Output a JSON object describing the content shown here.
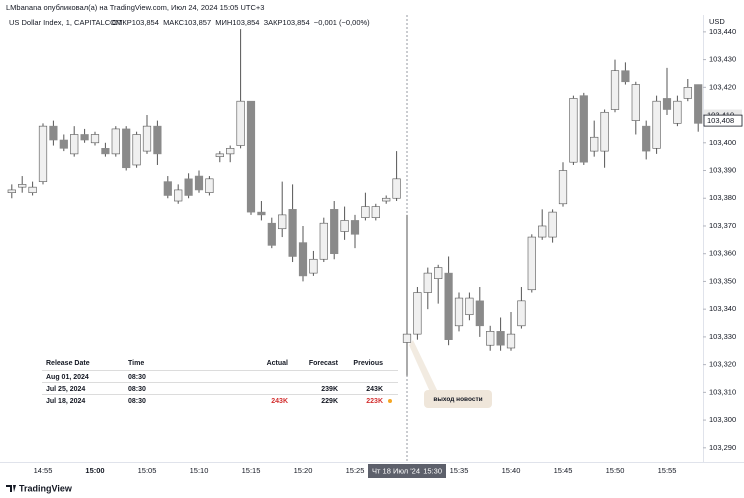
{
  "header": {
    "published": "LMbanana опубликовал(а) на TradingView.com, Июл 24, 2024 15:05 UTC+3",
    "symbol": "US Dollar Index, 1, CAPITALCOM",
    "ohlc": "ОТКР103,854  МАКС103,857  МИН103,854  ЗАКР103,854  −0,001 (−0,00%)",
    "currency": "USD"
  },
  "chart_data": {
    "type": "candlestick",
    "up_color": "#f0f0f0",
    "down_color": "#8a8a8a",
    "outline": "#555555",
    "categories": [
      null,
      null,
      null,
      "14:55",
      null,
      null,
      null,
      null,
      "15:00",
      null,
      null,
      null,
      null,
      "15:05",
      null,
      null,
      null,
      null,
      "15:10",
      null,
      null,
      null,
      null,
      "15:15",
      null,
      null,
      null,
      null,
      "15:20",
      null,
      null,
      null,
      null,
      "15:25",
      null,
      null,
      null,
      null,
      null,
      null,
      null,
      null,
      null,
      "15:35",
      null,
      null,
      null,
      null,
      "15:40",
      null,
      null,
      null,
      null,
      "15:45",
      null,
      null,
      null,
      null,
      "15:50",
      null,
      null,
      null,
      null,
      "15:55",
      null,
      null,
      null
    ],
    "open": [
      103.382,
      103.384,
      103.382,
      103.386,
      103.406,
      103.401,
      103.396,
      103.403,
      103.4,
      103.398,
      103.396,
      103.405,
      103.392,
      103.397,
      103.406,
      103.386,
      103.379,
      103.387,
      103.388,
      103.382,
      103.395,
      103.396,
      103.399,
      103.415,
      103.375,
      103.371,
      103.369,
      103.376,
      103.364,
      103.353,
      103.358,
      103.376,
      103.368,
      103.372,
      103.373,
      103.373,
      103.379,
      103.38,
      103.328,
      103.331,
      103.346,
      103.351,
      103.353,
      103.334,
      103.338,
      103.343,
      103.327,
      103.332,
      103.326,
      103.334,
      103.347,
      103.366,
      103.366,
      103.378,
      103.393,
      103.417,
      103.397,
      103.397,
      103.412,
      103.426,
      103.408,
      103.406,
      103.398,
      103.416,
      103.407,
      103.416,
      103.421
    ],
    "high": [
      103.385,
      103.388,
      103.386,
      103.407,
      103.408,
      103.403,
      103.406,
      103.405,
      103.404,
      103.4,
      103.406,
      103.406,
      103.404,
      103.41,
      103.408,
      103.388,
      103.385,
      103.389,
      103.39,
      103.388,
      103.397,
      103.399,
      103.441,
      103.415,
      103.379,
      103.373,
      103.386,
      103.385,
      103.37,
      103.361,
      103.373,
      103.379,
      103.377,
      103.374,
      103.382,
      103.378,
      103.381,
      103.397,
      103.374,
      103.348,
      103.355,
      103.356,
      103.359,
      103.346,
      103.346,
      103.348,
      103.334,
      103.337,
      103.339,
      103.348,
      103.367,
      103.376,
      103.376,
      103.393,
      103.417,
      103.418,
      103.408,
      103.412,
      103.43,
      103.429,
      103.422,
      103.408,
      103.417,
      103.427,
      103.417,
      103.423,
      103.421
    ],
    "low": [
      103.38,
      103.382,
      103.381,
      103.385,
      103.399,
      103.397,
      103.395,
      103.4,
      103.399,
      103.395,
      103.395,
      103.39,
      103.391,
      103.396,
      103.392,
      103.38,
      103.378,
      103.38,
      103.382,
      103.381,
      103.393,
      103.393,
      103.398,
      103.374,
      103.372,
      103.362,
      103.366,
      103.357,
      103.35,
      103.352,
      103.357,
      103.358,
      103.365,
      103.362,
      103.372,
      103.372,
      103.378,
      103.379,
      103.316,
      103.329,
      103.34,
      103.342,
      103.327,
      103.332,
      103.336,
      103.33,
      103.325,
      103.325,
      103.325,
      103.333,
      103.346,
      103.365,
      103.364,
      103.377,
      103.392,
      103.392,
      103.395,
      103.391,
      103.411,
      103.421,
      103.403,
      103.394,
      103.396,
      103.41,
      103.406,
      103.415,
      103.404
    ],
    "close": [
      103.383,
      103.385,
      103.384,
      103.406,
      103.401,
      103.398,
      103.403,
      103.401,
      103.403,
      103.396,
      103.405,
      103.391,
      103.403,
      103.406,
      103.396,
      103.381,
      103.383,
      103.381,
      103.383,
      103.387,
      103.396,
      103.398,
      103.415,
      103.375,
      103.374,
      103.363,
      103.374,
      103.359,
      103.352,
      103.358,
      103.371,
      103.36,
      103.372,
      103.367,
      103.377,
      103.377,
      103.38,
      103.387,
      103.331,
      103.346,
      103.353,
      103.355,
      103.329,
      103.344,
      103.344,
      103.334,
      103.332,
      103.327,
      103.331,
      103.343,
      103.366,
      103.37,
      103.375,
      103.39,
      103.416,
      103.393,
      103.402,
      103.411,
      103.426,
      103.422,
      103.421,
      103.397,
      103.415,
      103.412,
      103.415,
      103.42,
      103.407
    ],
    "ylim": [
      103.282,
      103.445
    ],
    "yticks": [
      {
        "value": 103.29,
        "label": "103,290"
      },
      {
        "value": 103.3,
        "label": "103,300"
      },
      {
        "value": 103.31,
        "label": "103,310"
      },
      {
        "value": 103.32,
        "label": "103,320"
      },
      {
        "value": 103.33,
        "label": "103,330"
      },
      {
        "value": 103.34,
        "label": "103,340"
      },
      {
        "value": 103.35,
        "label": "103,350"
      },
      {
        "value": 103.36,
        "label": "103,360"
      },
      {
        "value": 103.37,
        "label": "103,370"
      },
      {
        "value": 103.38,
        "label": "103,380"
      },
      {
        "value": 103.39,
        "label": "103,390"
      },
      {
        "value": 103.4,
        "label": "103,400"
      },
      {
        "value": 103.41,
        "label": "103,410"
      },
      {
        "value": 103.42,
        "label": "103,420"
      },
      {
        "value": 103.43,
        "label": "103,430"
      },
      {
        "value": 103.44,
        "label": "103,440"
      }
    ],
    "price_labels": [
      {
        "value": 103.41,
        "label": "103,410"
      },
      {
        "value": 103.408,
        "label": "103,408"
      }
    ],
    "crosshair": {
      "index": 38,
      "date": "Чт 18 Июл '24",
      "time": "15:30"
    },
    "annotation": "выход новости"
  },
  "news_table": {
    "columns": [
      "Release Date",
      "Time",
      "Actual",
      "Forecast",
      "Previous"
    ],
    "rows": [
      [
        "Aug 01, 2024",
        "08:30",
        null,
        null,
        null
      ],
      [
        "Jul 25, 2024",
        "08:30",
        null,
        "239K",
        "243K"
      ],
      [
        "Jul 18, 2024",
        "08:30",
        "243K",
        "229K",
        "223K"
      ]
    ]
  },
  "footer": {
    "brand": "TradingView"
  }
}
